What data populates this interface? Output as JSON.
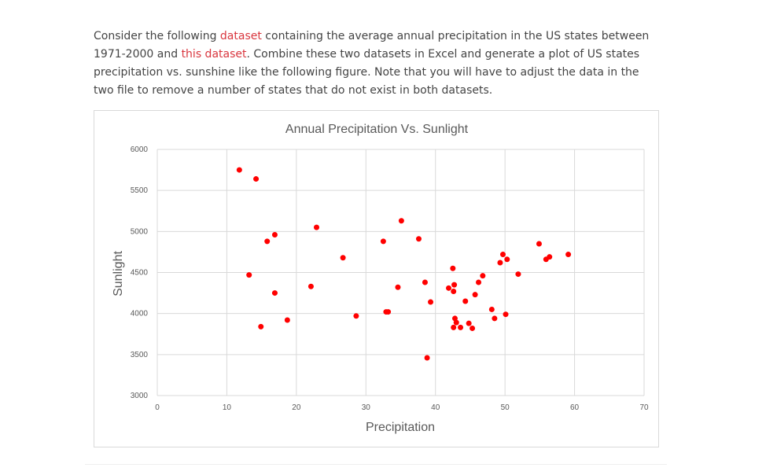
{
  "intro": {
    "text1": "Consider the following ",
    "link1": "dataset",
    "text2": " containing the average annual precipitation in the US states between 1971-2000 and ",
    "link2": "this dataset",
    "text3": ". Combine these two datasets in Excel and generate a plot of US states precipitation vs. sunshine like the following figure. Note that you will have to adjust the data in the two file to remove a number of states that do not exist in both datasets."
  },
  "colors": {
    "link": "#d9363e",
    "point": "#ff0000",
    "grid": "#d9d9d9",
    "text": "#444444"
  },
  "chart_data": {
    "type": "scatter",
    "title": "Annual Precipitation Vs. Sunlight",
    "xlabel": "Precipitation",
    "ylabel": "Sunlight",
    "xlim": [
      0,
      70
    ],
    "ylim": [
      3000,
      6000
    ],
    "xticks": [
      0,
      10,
      20,
      30,
      40,
      50,
      60,
      70
    ],
    "yticks": [
      3000,
      3500,
      4000,
      4500,
      5000,
      5500,
      6000
    ],
    "grid": true,
    "legend": "none",
    "points": [
      [
        11.8,
        5750
      ],
      [
        14.2,
        5640
      ],
      [
        13.2,
        4470
      ],
      [
        14.9,
        3840
      ],
      [
        15.8,
        4880
      ],
      [
        16.9,
        4960
      ],
      [
        16.9,
        4250
      ],
      [
        18.7,
        3920
      ],
      [
        22.1,
        4330
      ],
      [
        22.9,
        5050
      ],
      [
        26.7,
        4680
      ],
      [
        28.6,
        3970
      ],
      [
        32.5,
        4880
      ],
      [
        32.9,
        4020
      ],
      [
        33.2,
        4020
      ],
      [
        34.6,
        4320
      ],
      [
        35.1,
        5130
      ],
      [
        37.6,
        4910
      ],
      [
        38.5,
        4380
      ],
      [
        38.8,
        3460
      ],
      [
        39.3,
        4140
      ],
      [
        41.9,
        4310
      ],
      [
        42.5,
        4550
      ],
      [
        42.6,
        4270
      ],
      [
        42.7,
        4350
      ],
      [
        42.6,
        3830
      ],
      [
        42.8,
        3940
      ],
      [
        43.0,
        3890
      ],
      [
        43.6,
        3830
      ],
      [
        44.3,
        4150
      ],
      [
        44.8,
        3880
      ],
      [
        45.3,
        3820
      ],
      [
        45.7,
        4230
      ],
      [
        46.2,
        4380
      ],
      [
        46.8,
        4460
      ],
      [
        48.1,
        4050
      ],
      [
        48.5,
        3940
      ],
      [
        49.3,
        4620
      ],
      [
        49.7,
        4720
      ],
      [
        50.1,
        3990
      ],
      [
        50.3,
        4660
      ],
      [
        51.9,
        4480
      ],
      [
        54.9,
        4850
      ],
      [
        55.9,
        4660
      ],
      [
        56.4,
        4690
      ],
      [
        59.1,
        4720
      ]
    ]
  }
}
